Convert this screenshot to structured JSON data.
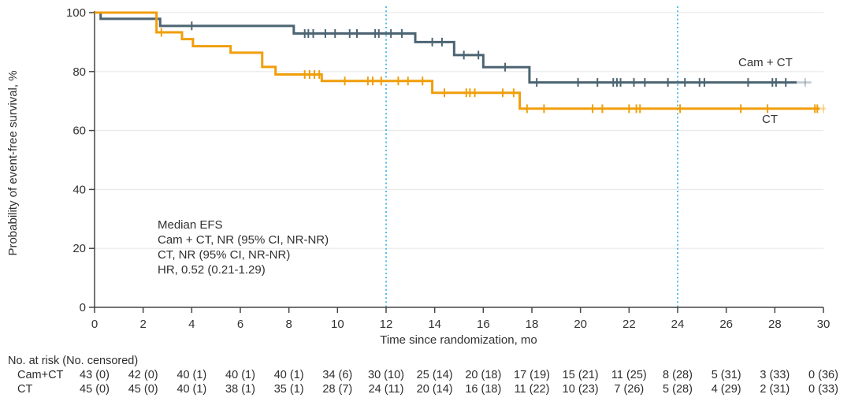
{
  "chart_data": {
    "type": "line",
    "subtype": "kaplan-meier-step",
    "title": "",
    "xlabel": "Time since randomization, mo",
    "ylabel": "Probability of event-free survival, %",
    "xlim": [
      0,
      30
    ],
    "ylim": [
      0,
      100
    ],
    "x_ticks": [
      0,
      2,
      4,
      6,
      8,
      10,
      12,
      14,
      16,
      18,
      20,
      22,
      24,
      26,
      28,
      30
    ],
    "y_ticks": [
      0,
      20,
      40,
      60,
      80,
      100
    ],
    "grid": "horizontal-light",
    "reference_lines_x": [
      12,
      24
    ],
    "colors": {
      "cam_ct": "#4C6472",
      "ct": "#F09E0A",
      "reference": "#41B6E6",
      "grid": "#E9E9E9",
      "axis": "#454545",
      "text": "#333333"
    },
    "annotation": {
      "lines": [
        "Median EFS",
        "Cam + CT, NR (95% CI, NR-NR)",
        "CT, NR (95% CI, NR-NR)",
        "HR, 0.52 (0.21-1.29)"
      ]
    },
    "series": [
      {
        "name": "Cam + CT",
        "color": "#4C6472",
        "start": [
          0,
          100
        ],
        "steps": [
          [
            0.25,
            97.9
          ],
          [
            2.7,
            95.5
          ],
          [
            8.2,
            92.9
          ],
          [
            13.2,
            90.0
          ],
          [
            14.8,
            85.6
          ],
          [
            16.0,
            81.5
          ],
          [
            17.9,
            76.3
          ]
        ],
        "end_t": 28.9,
        "fade_end_t": 29.5,
        "censors": [
          [
            4.0,
            95.5
          ],
          [
            8.65,
            92.9
          ],
          [
            8.8,
            92.9
          ],
          [
            9.0,
            92.9
          ],
          [
            9.5,
            92.9
          ],
          [
            9.9,
            92.9
          ],
          [
            10.5,
            92.9
          ],
          [
            10.8,
            92.9
          ],
          [
            11.55,
            92.9
          ],
          [
            11.7,
            92.9
          ],
          [
            12.2,
            92.9
          ],
          [
            12.65,
            92.9
          ],
          [
            13.9,
            90.0
          ],
          [
            14.3,
            90.0
          ],
          [
            15.2,
            85.6
          ],
          [
            15.8,
            85.6
          ],
          [
            16.9,
            81.5
          ],
          [
            18.2,
            76.3
          ],
          [
            19.9,
            76.3
          ],
          [
            20.7,
            76.3
          ],
          [
            21.35,
            76.3
          ],
          [
            21.5,
            76.3
          ],
          [
            21.65,
            76.3
          ],
          [
            22.2,
            76.3
          ],
          [
            22.65,
            76.3
          ],
          [
            23.6,
            76.3
          ],
          [
            24.3,
            76.3
          ],
          [
            24.9,
            76.3
          ],
          [
            25.1,
            76.3
          ],
          [
            26.9,
            76.3
          ],
          [
            27.9,
            76.3
          ],
          [
            28.05,
            76.3
          ],
          [
            28.45,
            76.3
          ]
        ],
        "faded_censors": [
          [
            29.25,
            76.3
          ]
        ]
      },
      {
        "name": "CT",
        "color": "#F09E0A",
        "start": [
          0,
          100
        ],
        "steps": [
          [
            2.55,
            93.3
          ],
          [
            3.6,
            91.0
          ],
          [
            4.05,
            88.6
          ],
          [
            5.6,
            86.4
          ],
          [
            6.9,
            81.6
          ],
          [
            7.45,
            79.0
          ],
          [
            9.35,
            76.8
          ],
          [
            13.9,
            72.8
          ],
          [
            17.5,
            67.4
          ]
        ],
        "end_t": 29.85,
        "fade_end_t": 30.1,
        "censors": [
          [
            2.75,
            93.3
          ],
          [
            8.65,
            79.0
          ],
          [
            8.85,
            79.0
          ],
          [
            9.05,
            79.0
          ],
          [
            9.25,
            79.0
          ],
          [
            10.3,
            76.8
          ],
          [
            11.25,
            76.8
          ],
          [
            11.45,
            76.8
          ],
          [
            11.8,
            76.8
          ],
          [
            12.5,
            76.8
          ],
          [
            12.9,
            76.8
          ],
          [
            13.5,
            76.8
          ],
          [
            14.4,
            72.8
          ],
          [
            15.3,
            72.8
          ],
          [
            15.45,
            72.8
          ],
          [
            15.65,
            72.8
          ],
          [
            16.8,
            72.8
          ],
          [
            17.25,
            72.8
          ],
          [
            17.8,
            67.4
          ],
          [
            18.5,
            67.4
          ],
          [
            20.5,
            67.4
          ],
          [
            20.9,
            67.4
          ],
          [
            22.0,
            67.4
          ],
          [
            22.3,
            67.4
          ],
          [
            22.45,
            67.4
          ],
          [
            24.1,
            67.4
          ],
          [
            26.6,
            67.4
          ],
          [
            27.7,
            67.4
          ],
          [
            29.65,
            67.4
          ],
          [
            29.75,
            67.4
          ]
        ],
        "faded_censors": [
          [
            30.0,
            67.4
          ]
        ]
      }
    ],
    "risk_table": {
      "header": "No. at risk (No. censored)",
      "times": [
        0,
        2,
        4,
        6,
        8,
        10,
        12,
        14,
        16,
        18,
        20,
        22,
        24,
        26,
        28,
        30
      ],
      "rows": [
        {
          "label": "Cam+CT",
          "values": [
            "43 (0)",
            "42 (0)",
            "40 (1)",
            "40 (1)",
            "40 (1)",
            "34 (6)",
            "30 (10)",
            "25 (14)",
            "20 (18)",
            "17 (19)",
            "15 (21)",
            "11 (25)",
            "8 (28)",
            "5 (31)",
            "3 (33)",
            "0 (36)"
          ]
        },
        {
          "label": "CT",
          "values": [
            "45 (0)",
            "45 (0)",
            "40 (1)",
            "38 (1)",
            "35 (1)",
            "28 (7)",
            "24 (11)",
            "20 (14)",
            "16 (18)",
            "11 (22)",
            "10 (23)",
            "7 (26)",
            "5 (28)",
            "4 (29)",
            "2 (31)",
            "0 (33)"
          ]
        }
      ]
    }
  }
}
